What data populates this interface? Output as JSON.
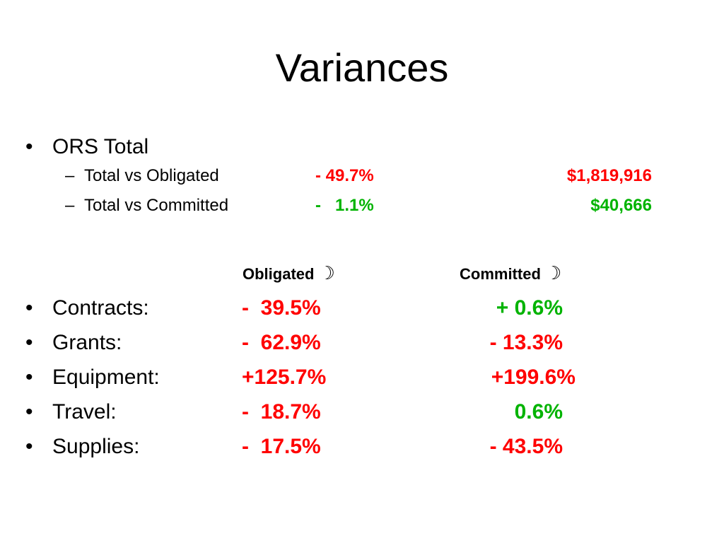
{
  "slide": {
    "title": "Variances",
    "bullet_glyph": "•",
    "sub_glyph": "–"
  },
  "ors": {
    "label": "ORS Total",
    "rows": [
      {
        "label": "Total vs Obligated",
        "pct": "- 49.7%",
        "amount": "$1,819,916",
        "pct_color": "#ff0000",
        "amount_color": "#ff0000"
      },
      {
        "label": "Total vs Committed",
        "pct": "-   1.1%",
        "amount": "$40,666",
        "pct_color": "#00b300",
        "amount_color": "#00b300"
      }
    ]
  },
  "headers": {
    "obligated": "Obligated",
    "committed": "Committed",
    "icon_glyph": "☽",
    "icon_name": "crescent-moon-icon"
  },
  "categories": [
    {
      "label": "Contracts:",
      "obligated": "-  39.5%",
      "committed": "+ 0.6%",
      "obligated_color": "#ff0000",
      "committed_color": "#00b300"
    },
    {
      "label": "Grants:",
      "obligated": "-  62.9%",
      "committed": "- 13.3%",
      "obligated_color": "#ff0000",
      "committed_color": "#ff0000"
    },
    {
      "label": "Equipment:",
      "obligated": "+125.7%",
      "committed": "+199.6%",
      "obligated_color": "#ff0000",
      "committed_color": "#ff0000"
    },
    {
      "label": "Travel:",
      "obligated": "-  18.7%",
      "committed": "0.6%",
      "obligated_color": "#ff0000",
      "committed_color": "#00b300"
    },
    {
      "label": "Supplies:",
      "obligated": "-  17.5%",
      "committed": "- 43.5%",
      "obligated_color": "#ff0000",
      "committed_color": "#ff0000"
    }
  ]
}
